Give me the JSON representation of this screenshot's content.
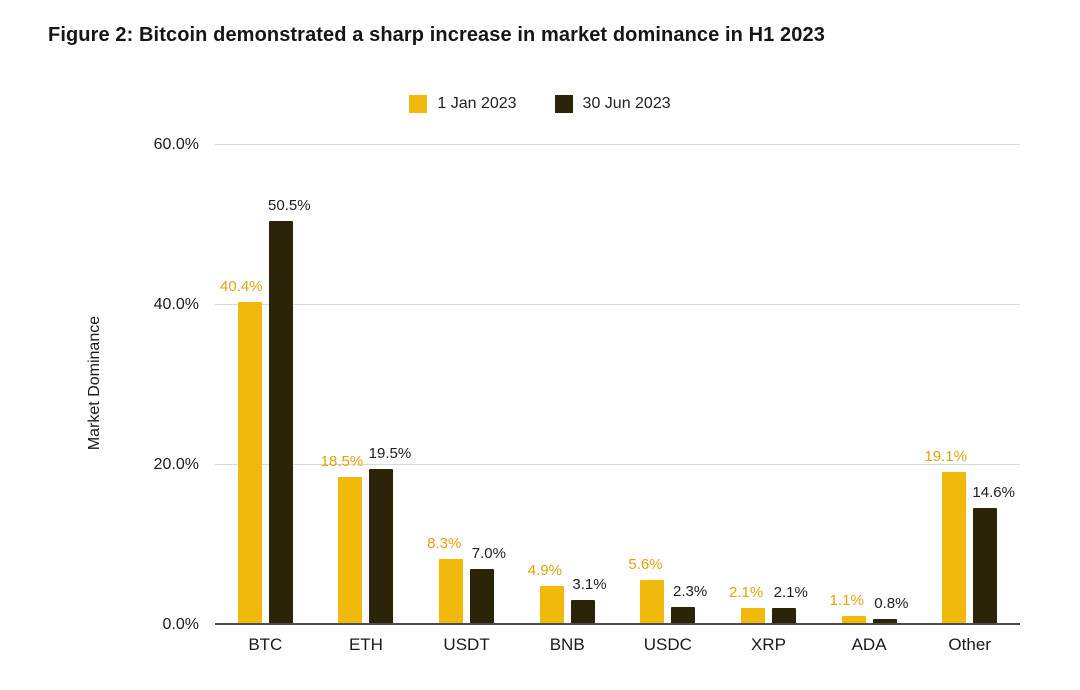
{
  "title": "Figure 2: Bitcoin demonstrated a sharp increase in market dominance in H1 2023",
  "chart_data": {
    "type": "bar",
    "categories": [
      "BTC",
      "ETH",
      "USDT",
      "BNB",
      "USDC",
      "XRP",
      "ADA",
      "Other"
    ],
    "series": [
      {
        "name": "1 Jan 2023",
        "color": "#F0B90B",
        "label_color": "#E2A30C",
        "values": [
          40.4,
          18.5,
          8.3,
          4.9,
          5.6,
          2.1,
          1.1,
          19.1
        ]
      },
      {
        "name": "30 Jun 2023",
        "color": "#2B2408",
        "label_color": "#1E1E1E",
        "values": [
          50.5,
          19.5,
          7.0,
          3.1,
          2.3,
          2.1,
          0.8,
          14.6
        ]
      }
    ],
    "title": "Figure 2: Bitcoin demonstrated a sharp increase in market dominance in H1 2023",
    "xlabel": "",
    "ylabel": "Market Dominance",
    "ylim": [
      0,
      60
    ],
    "yticks": [
      0,
      20,
      40,
      60
    ],
    "ytick_labels": [
      "0.0%",
      "20.0%",
      "40.0%",
      "60.0%"
    ],
    "value_suffix": "%",
    "grid": true,
    "legend_position": "top",
    "data_labels": true
  }
}
